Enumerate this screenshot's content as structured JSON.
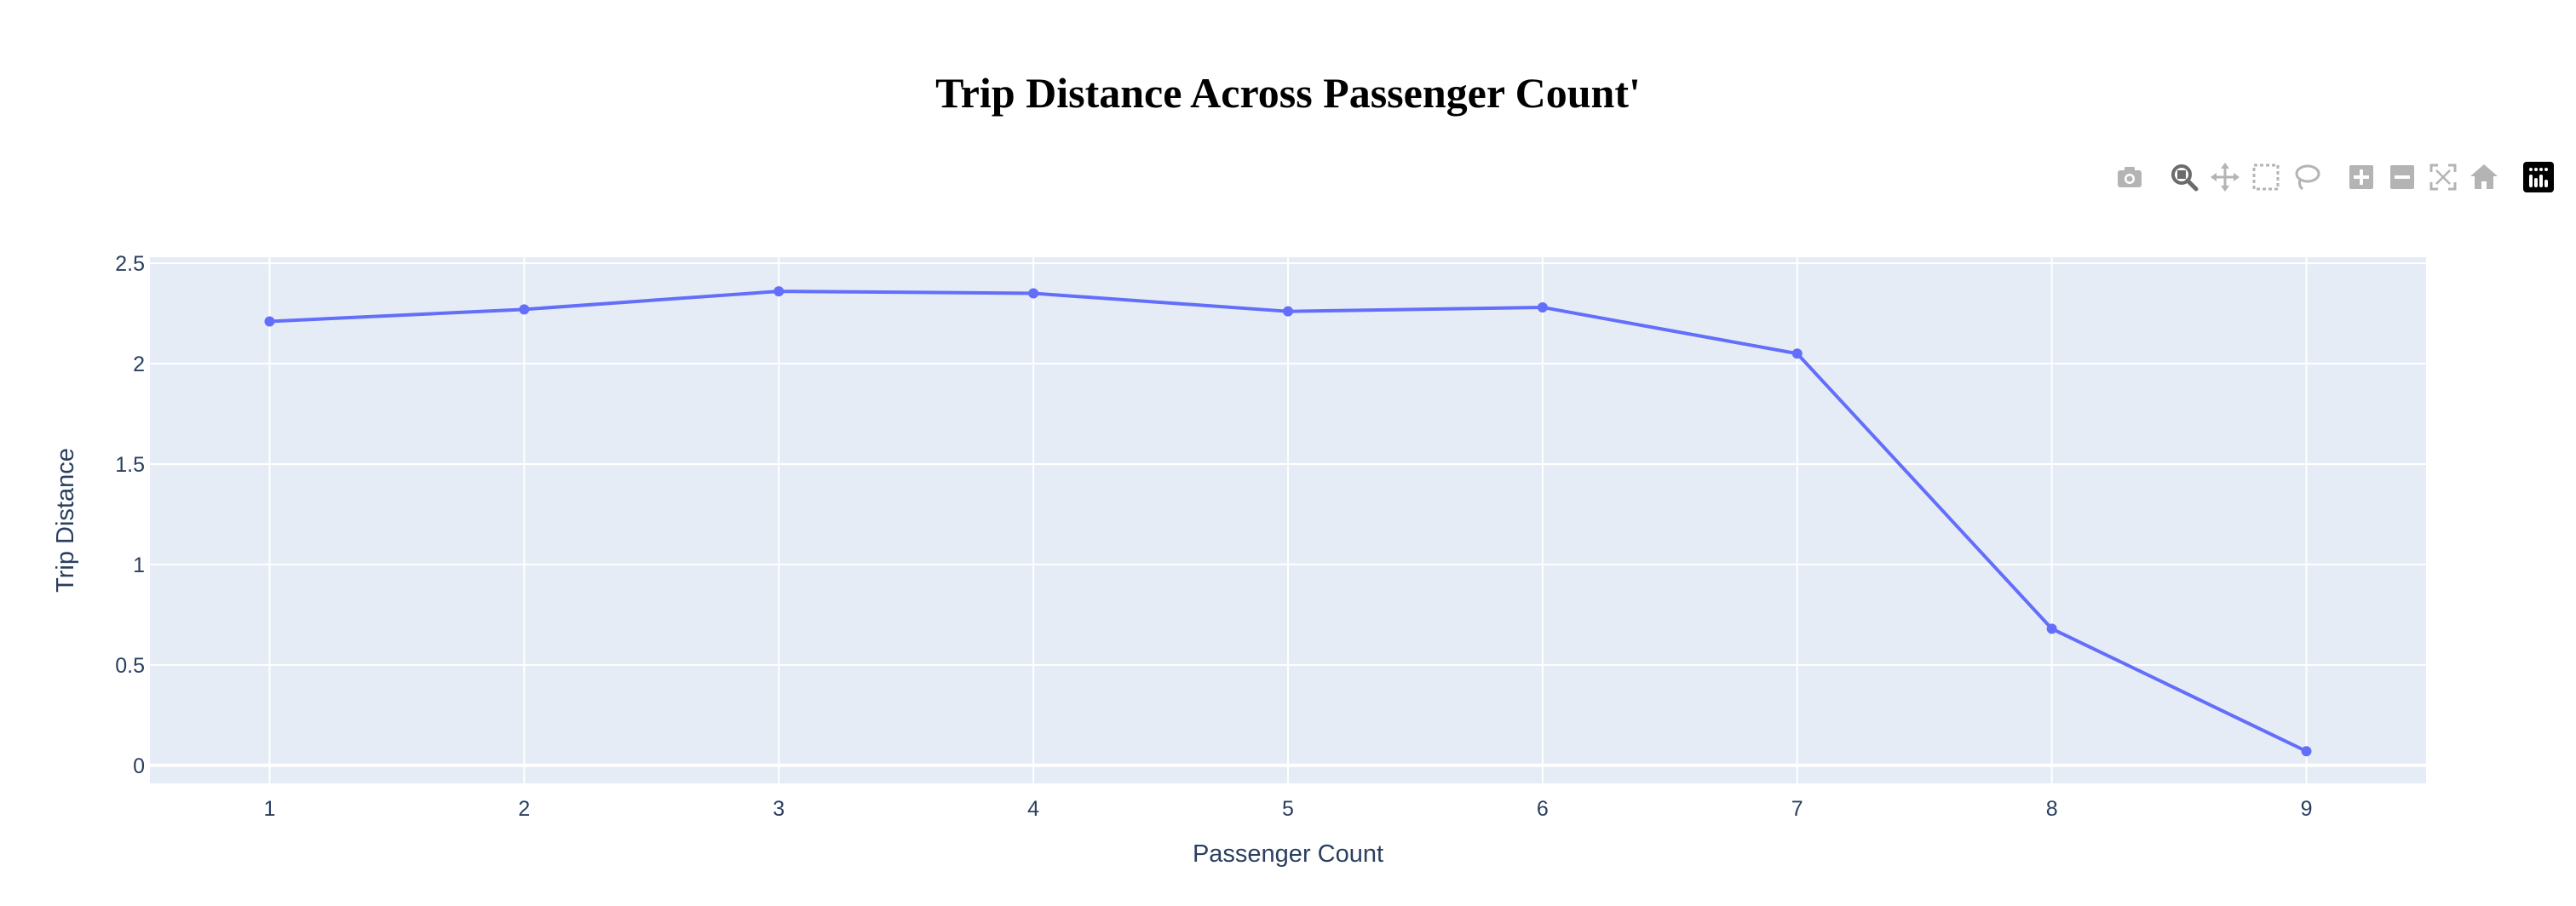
{
  "title": "Trip Distance Across Passenger Count'",
  "colors": {
    "plot_background": "#e5ecf6",
    "grid": "#ffffff",
    "line": "#636efa",
    "tick_text": "#2a3f5f",
    "modebar_icon": "#b4b4b4",
    "modebar_active": "#6b6b6b"
  },
  "modebar": {
    "buttons": [
      {
        "name": "download-plot-icon",
        "active": false
      },
      {
        "name": "zoom-icon",
        "active": true
      },
      {
        "name": "pan-icon",
        "active": false
      },
      {
        "name": "box-select-icon",
        "active": false
      },
      {
        "name": "lasso-select-icon",
        "active": false
      },
      {
        "name": "zoom-in-icon",
        "active": false
      },
      {
        "name": "zoom-out-icon",
        "active": false
      },
      {
        "name": "autoscale-icon",
        "active": false
      },
      {
        "name": "reset-axes-icon",
        "active": false
      },
      {
        "name": "plotly-logo-icon",
        "active": false
      }
    ]
  },
  "chart_data": {
    "type": "line",
    "title": "Trip Distance Across Passenger Count'",
    "xlabel": "Passenger Count",
    "ylabel": "Trip Distance",
    "x": [
      1,
      2,
      3,
      4,
      5,
      6,
      7,
      8,
      9
    ],
    "xlim": [
      0.53,
      9.47
    ],
    "ylim": [
      -0.09,
      2.53
    ],
    "x_ticks": [
      "1",
      "2",
      "3",
      "4",
      "5",
      "6",
      "7",
      "8",
      "9"
    ],
    "y_ticks": [
      {
        "value": 0,
        "label": "0"
      },
      {
        "value": 0.5,
        "label": "0.5"
      },
      {
        "value": 1,
        "label": "1"
      },
      {
        "value": 1.5,
        "label": "1.5"
      },
      {
        "value": 2,
        "label": "2"
      },
      {
        "value": 2.5,
        "label": "2.5"
      }
    ],
    "grid": true,
    "legend": "none",
    "series": [
      {
        "values": [
          2.21,
          2.27,
          2.36,
          2.35,
          2.26,
          2.28,
          2.05,
          0.68,
          0.07
        ],
        "mode": "lines+markers"
      }
    ]
  }
}
